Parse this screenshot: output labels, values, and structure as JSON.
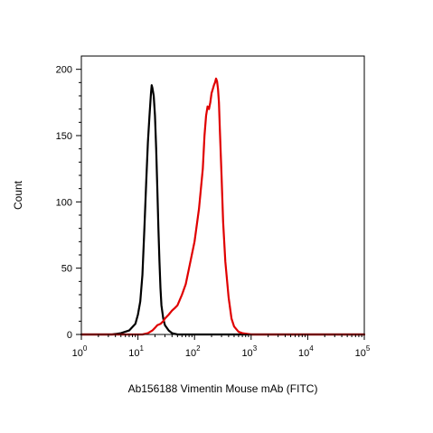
{
  "chart_data": {
    "type": "line",
    "title": "",
    "xlabel": "Ab156188 Vimentin Mouse mAb (FITC)",
    "ylabel": "Count",
    "x_scale": "log",
    "xlim": [
      1,
      100000
    ],
    "ylim": [
      0,
      210
    ],
    "grid": false,
    "legend": "none",
    "x_ticks": [
      {
        "base": "10",
        "exp": "0"
      },
      {
        "base": "10",
        "exp": "1"
      },
      {
        "base": "10",
        "exp": "2"
      },
      {
        "base": "10",
        "exp": "3"
      },
      {
        "base": "10",
        "exp": "4"
      },
      {
        "base": "10",
        "exp": "5"
      }
    ],
    "y_ticks": [
      "0",
      "50",
      "100",
      "150",
      "200"
    ],
    "y_tick_values": [
      0,
      50,
      100,
      150,
      200
    ],
    "series": [
      {
        "color": "#000000",
        "x": [
          1,
          3.5,
          5,
          7,
          9,
          10,
          11,
          12,
          13,
          14,
          15,
          16,
          17,
          17.5,
          18,
          19,
          20,
          21,
          22,
          23,
          24,
          25,
          26,
          28,
          30,
          35,
          40,
          50,
          70,
          100000
        ],
        "y": [
          0,
          0,
          1,
          3,
          8,
          15,
          25,
          45,
          80,
          115,
          145,
          165,
          182,
          188,
          186,
          180,
          165,
          140,
          110,
          80,
          55,
          35,
          22,
          12,
          7,
          3,
          1,
          0,
          0,
          0
        ]
      },
      {
        "color": "#e00000",
        "x": [
          1,
          12,
          15,
          18,
          20,
          22,
          25,
          28,
          30,
          35,
          40,
          45,
          50,
          60,
          70,
          80,
          100,
          120,
          140,
          150,
          160,
          170,
          180,
          190,
          200,
          210,
          220,
          230,
          240,
          250,
          260,
          270,
          280,
          300,
          320,
          350,
          400,
          450,
          500,
          600,
          700,
          1000,
          100000
        ],
        "y": [
          0,
          0,
          1,
          3,
          5,
          7,
          8,
          10,
          12,
          15,
          18,
          20,
          22,
          30,
          38,
          50,
          70,
          95,
          125,
          150,
          165,
          172,
          170,
          175,
          182,
          185,
          188,
          190,
          193,
          191,
          185,
          175,
          155,
          120,
          85,
          55,
          28,
          12,
          6,
          2,
          1,
          0,
          0
        ]
      }
    ]
  }
}
